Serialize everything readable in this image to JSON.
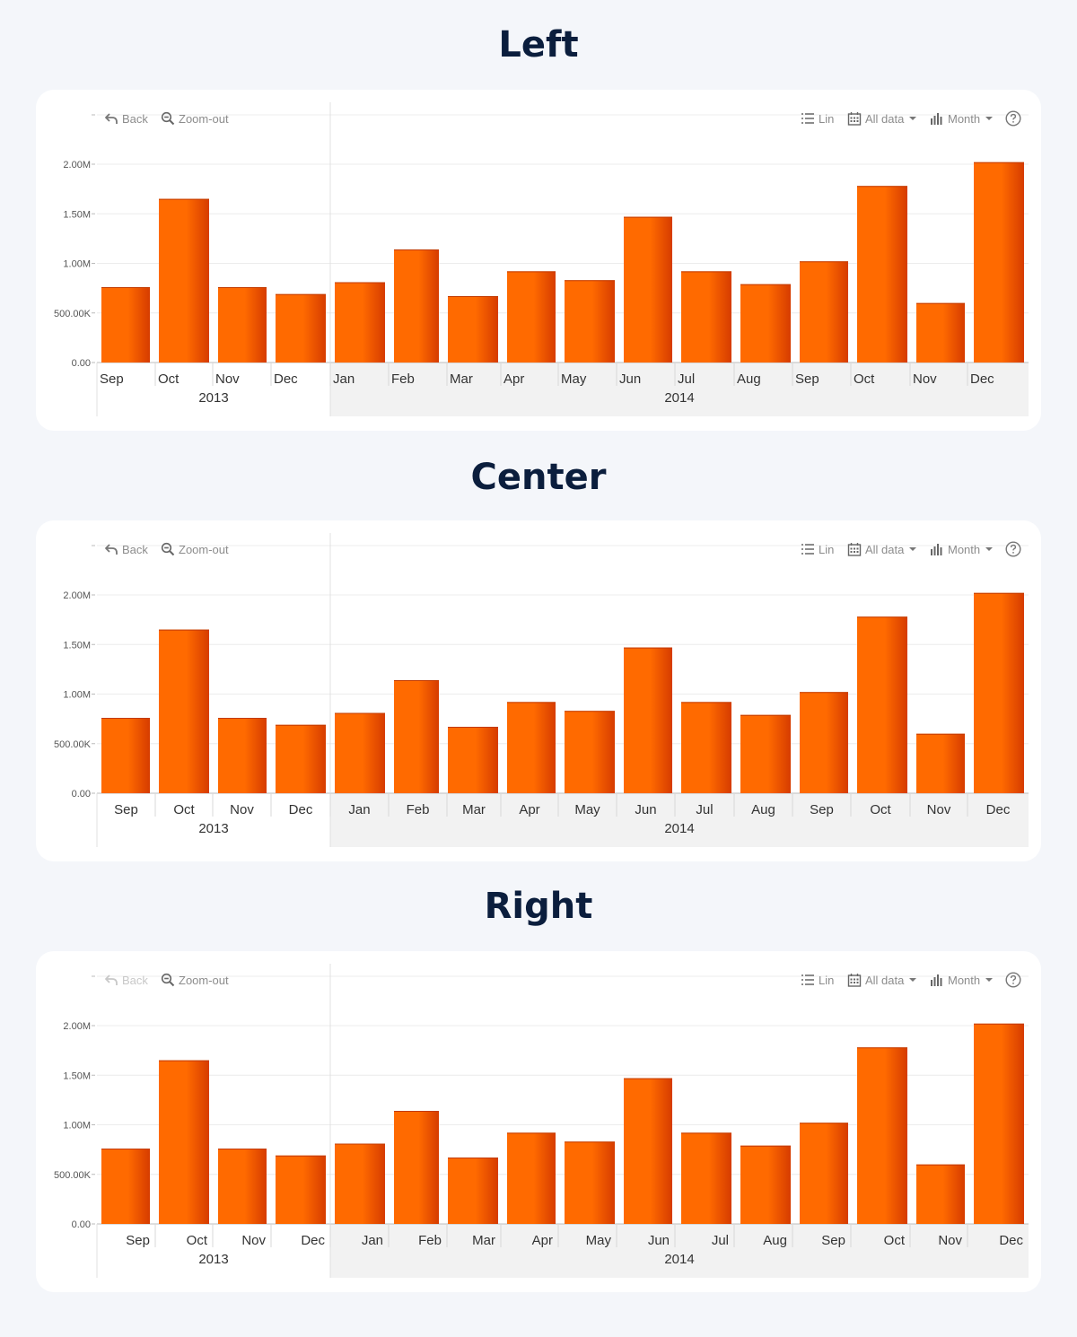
{
  "toolbar": {
    "back_label": "Back",
    "zoomout_label": "Zoom-out",
    "scale_label": "Lin",
    "range_label": "All data",
    "period_label": "Month",
    "help_icon": "help-circle-icon"
  },
  "panels": [
    {
      "id": "left",
      "title": "Left",
      "align": "left",
      "back_enabled": true
    },
    {
      "id": "center",
      "title": "Center",
      "align": "center",
      "back_enabled": true
    },
    {
      "id": "right",
      "title": "Right",
      "align": "right",
      "back_enabled": false
    }
  ],
  "colors": {
    "bar": "#ff6a00",
    "bar_dark": "#d63c00",
    "year_band": "#f2f2f2"
  },
  "chart_data": {
    "type": "bar",
    "categories": [
      "Sep",
      "Oct",
      "Nov",
      "Dec",
      "Jan",
      "Feb",
      "Mar",
      "Apr",
      "May",
      "Jun",
      "Jul",
      "Aug",
      "Sep",
      "Oct",
      "Nov",
      "Dec"
    ],
    "category_years": [
      "2013",
      "2013",
      "2013",
      "2013",
      "2014",
      "2014",
      "2014",
      "2014",
      "2014",
      "2014",
      "2014",
      "2014",
      "2014",
      "2014",
      "2014",
      "2014"
    ],
    "years": [
      {
        "label": "2013",
        "start": 0,
        "end": 3,
        "shaded": false
      },
      {
        "label": "2014",
        "start": 4,
        "end": 15,
        "shaded": true
      }
    ],
    "values": [
      760000,
      1650000,
      760000,
      690000,
      810000,
      1140000,
      670000,
      920000,
      830000,
      1470000,
      920000,
      790000,
      1020000,
      1780000,
      600000,
      2020000
    ],
    "ylim": [
      0,
      2200000
    ],
    "yticks": [
      0,
      500000,
      1000000,
      1500000,
      2000000
    ],
    "ytick_labels": [
      "0.00",
      "500.00K",
      "1.00M",
      "1.50M",
      "2.00M"
    ],
    "grid": true,
    "legend": false
  }
}
